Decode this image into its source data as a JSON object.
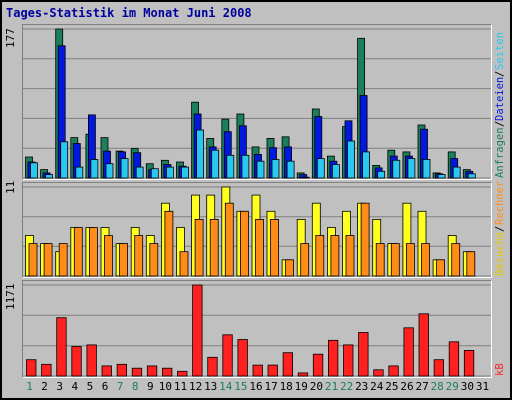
{
  "title": "Tages-Statistik im Monat Juni 2008",
  "colors": {
    "frame": "#c0c0c0",
    "title": "#0000a0",
    "anfragen": "#1a7f5a",
    "dateien": "#0018e0",
    "seiten": "#28c8f0",
    "besuche": "#ffff20",
    "rechner": "#ff8c18",
    "kb": "#ff2020",
    "weekday_label": "#000000",
    "weekend_label": "#1a7f5a"
  },
  "legend": {
    "top": [
      {
        "text": "Anfragen",
        "color": "#1a7f5a"
      },
      {
        "text": "Dateien",
        "color": "#0018e0"
      },
      {
        "text": "Seiten",
        "color": "#28c8f0"
      }
    ],
    "middle": [
      {
        "text": "Besuche",
        "color": "#e6c800"
      },
      {
        "text": "Rechner",
        "color": "#ff8c18"
      }
    ],
    "bottom": [
      {
        "text": "kB",
        "color": "#ff2020"
      }
    ]
  },
  "chart_data": [
    {
      "type": "bar",
      "panel": "top",
      "y_max_label": "177",
      "ylim": [
        0,
        177
      ],
      "categories": [
        "1",
        "2",
        "3",
        "4",
        "5",
        "6",
        "7",
        "8",
        "9",
        "10",
        "11",
        "12",
        "13",
        "14",
        "15",
        "16",
        "17",
        "18",
        "19",
        "20",
        "21",
        "22",
        "23",
        "24",
        "25",
        "26",
        "27",
        "28",
        "29",
        "30",
        "31"
      ],
      "series": [
        {
          "name": "Anfragen",
          "values": [
            25,
            10,
            177,
            48,
            52,
            48,
            32,
            35,
            17,
            21,
            19,
            90,
            47,
            70,
            76,
            37,
            47,
            49,
            6,
            82,
            26,
            61,
            166,
            15,
            33,
            31,
            63,
            6,
            31,
            10,
            0
          ]
        },
        {
          "name": "Dateien",
          "values": [
            19,
            6,
            157,
            41,
            75,
            32,
            31,
            30,
            10,
            16,
            14,
            76,
            37,
            55,
            62,
            28,
            36,
            37,
            4,
            73,
            20,
            68,
            98,
            12,
            26,
            26,
            58,
            5,
            23,
            8,
            0
          ]
        },
        {
          "name": "Seiten",
          "values": [
            18,
            4,
            43,
            13,
            22,
            17,
            23,
            13,
            11,
            13,
            13,
            57,
            33,
            27,
            27,
            20,
            22,
            20,
            1,
            23,
            16,
            44,
            31,
            8,
            21,
            23,
            22,
            4,
            13,
            5,
            0
          ]
        }
      ]
    },
    {
      "type": "bar",
      "panel": "middle",
      "y_max_label": "11",
      "ylim": [
        0,
        11
      ],
      "categories": [
        "1",
        "2",
        "3",
        "4",
        "5",
        "6",
        "7",
        "8",
        "9",
        "10",
        "11",
        "12",
        "13",
        "14",
        "15",
        "16",
        "17",
        "18",
        "19",
        "20",
        "21",
        "22",
        "23",
        "24",
        "25",
        "26",
        "27",
        "28",
        "29",
        "30",
        "31"
      ],
      "series": [
        {
          "name": "Besuche",
          "values": [
            5,
            4,
            3,
            6,
            6,
            6,
            4,
            6,
            5,
            9,
            6,
            10,
            10,
            11,
            8,
            10,
            8,
            2,
            7,
            9,
            6,
            8,
            9,
            7,
            4,
            9,
            8,
            2,
            5,
            3,
            0
          ]
        },
        {
          "name": "Rechner",
          "values": [
            4,
            4,
            4,
            6,
            6,
            5,
            4,
            5,
            4,
            8,
            3,
            7,
            7,
            9,
            8,
            7,
            7,
            2,
            4,
            5,
            5,
            5,
            9,
            4,
            4,
            4,
            4,
            2,
            4,
            3,
            0
          ]
        }
      ]
    },
    {
      "type": "bar",
      "panel": "bottom",
      "y_max_label": "1171",
      "ylim": [
        0,
        1171
      ],
      "categories": [
        "1",
        "2",
        "3",
        "4",
        "5",
        "6",
        "7",
        "8",
        "9",
        "10",
        "11",
        "12",
        "13",
        "14",
        "15",
        "16",
        "17",
        "18",
        "19",
        "20",
        "21",
        "22",
        "23",
        "24",
        "25",
        "26",
        "27",
        "28",
        "29",
        "30",
        "31"
      ],
      "series": [
        {
          "name": "kB",
          "values": [
            210,
            150,
            750,
            380,
            400,
            130,
            150,
            100,
            130,
            100,
            60,
            1171,
            240,
            530,
            470,
            140,
            140,
            300,
            40,
            280,
            460,
            400,
            560,
            80,
            130,
            620,
            800,
            210,
            440,
            330,
            0
          ]
        }
      ]
    }
  ],
  "x_labels": [
    {
      "text": "1",
      "weekend": true
    },
    {
      "text": "2",
      "weekend": false
    },
    {
      "text": "3",
      "weekend": false
    },
    {
      "text": "4",
      "weekend": false
    },
    {
      "text": "5",
      "weekend": false
    },
    {
      "text": "6",
      "weekend": false
    },
    {
      "text": "7",
      "weekend": true
    },
    {
      "text": "8",
      "weekend": true
    },
    {
      "text": "9",
      "weekend": false
    },
    {
      "text": "10",
      "weekend": false
    },
    {
      "text": "11",
      "weekend": false
    },
    {
      "text": "12",
      "weekend": false
    },
    {
      "text": "13",
      "weekend": false
    },
    {
      "text": "14",
      "weekend": true
    },
    {
      "text": "15",
      "weekend": true
    },
    {
      "text": "16",
      "weekend": false
    },
    {
      "text": "17",
      "weekend": false
    },
    {
      "text": "18",
      "weekend": false
    },
    {
      "text": "19",
      "weekend": false
    },
    {
      "text": "20",
      "weekend": false
    },
    {
      "text": "21",
      "weekend": true
    },
    {
      "text": "22",
      "weekend": true
    },
    {
      "text": "23",
      "weekend": false
    },
    {
      "text": "24",
      "weekend": false
    },
    {
      "text": "25",
      "weekend": false
    },
    {
      "text": "26",
      "weekend": false
    },
    {
      "text": "27",
      "weekend": false
    },
    {
      "text": "28",
      "weekend": true
    },
    {
      "text": "29",
      "weekend": true
    },
    {
      "text": "30",
      "weekend": false
    },
    {
      "text": "31",
      "weekend": false
    }
  ]
}
